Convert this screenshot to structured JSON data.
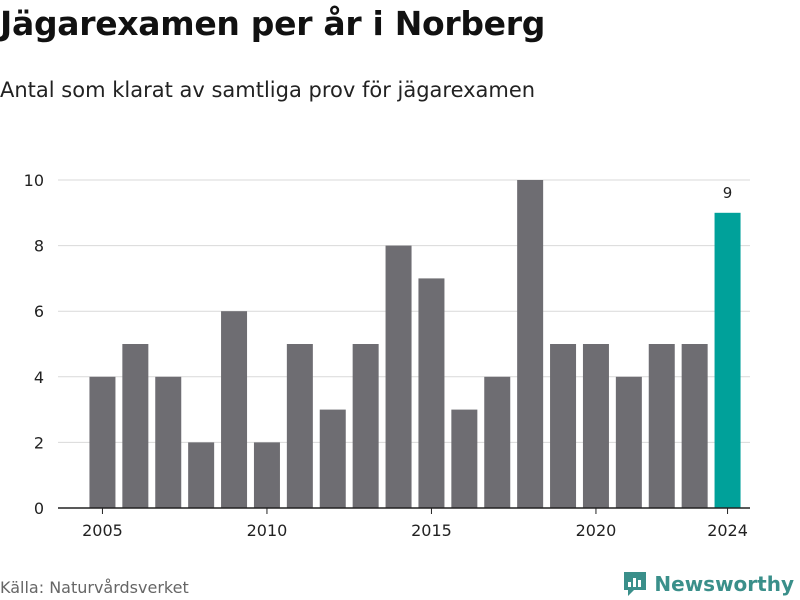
{
  "header": {
    "title": "Jägarexamen per år i Norberg",
    "subtitle": "Antal som klarat av samtliga prov för jägarexamen"
  },
  "footer": {
    "source": "Källa: Naturvårdsverket",
    "brand": "Newsworthy"
  },
  "colors": {
    "bar": "#6e6d72",
    "highlight": "#00a19a",
    "grid": "#d9d9d9",
    "axis": "#222222",
    "brand": "#3a8f8a"
  },
  "chart_data": {
    "type": "bar",
    "title": "Jägarexamen per år i Norberg",
    "subtitle": "Antal som klarat av samtliga prov för jägarexamen",
    "categories": [
      2005,
      2006,
      2007,
      2008,
      2009,
      2010,
      2011,
      2012,
      2013,
      2014,
      2015,
      2016,
      2017,
      2018,
      2019,
      2020,
      2021,
      2022,
      2023,
      2024
    ],
    "values": [
      4,
      5,
      4,
      2,
      6,
      2,
      5,
      3,
      5,
      8,
      7,
      3,
      4,
      10,
      5,
      5,
      4,
      5,
      5,
      9
    ],
    "highlight_index": 19,
    "highlight_label": "9",
    "x_ticks": [
      2005,
      2010,
      2015,
      2020,
      2024
    ],
    "y_ticks": [
      0,
      2,
      4,
      6,
      8,
      10
    ],
    "ylim": [
      0,
      10
    ],
    "xlabel": "",
    "ylabel": "",
    "grid": true,
    "legend": false
  }
}
